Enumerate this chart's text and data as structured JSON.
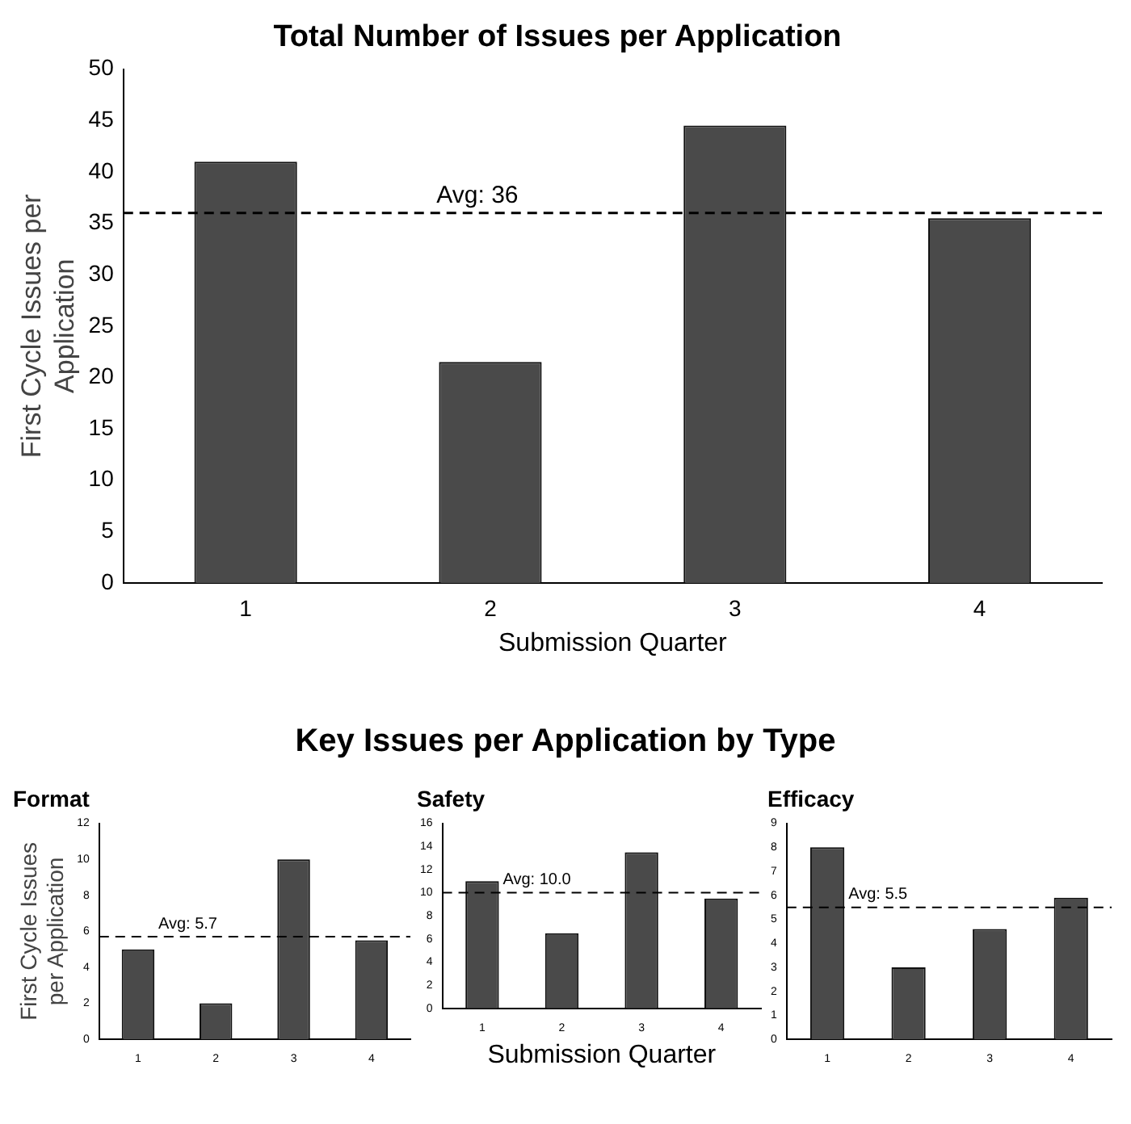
{
  "chart_data": [
    {
      "type": "bar",
      "title": "Total Number of Issues per Application",
      "xlabel": "Submission Quarter",
      "ylabel": "First Cycle Issues per Application",
      "categories": [
        "1",
        "2",
        "3",
        "4"
      ],
      "values": [
        41,
        21.5,
        44.5,
        35.5
      ],
      "color": "#4a4a4a",
      "ylim": [
        0,
        50
      ],
      "yticks": [
        0,
        5,
        10,
        15,
        20,
        25,
        30,
        35,
        40,
        45,
        50
      ],
      "grid": false,
      "ref_lines": [
        {
          "axis": "y",
          "value": 36,
          "label": "Avg: 36",
          "color": "#000000",
          "line_style": "dashed"
        }
      ]
    },
    {
      "type": "bar",
      "title": "Key Issues per Application by Type",
      "subtitle": "Format",
      "ylabel": "First Cycle Issues per Application",
      "categories": [
        "1",
        "2",
        "3",
        "4"
      ],
      "values": [
        5,
        2,
        10,
        5.5
      ],
      "color": "#4a4a4a",
      "ylim": [
        0,
        12
      ],
      "yticks": [
        0,
        2,
        4,
        6,
        8,
        10,
        12
      ],
      "grid": false,
      "ref_lines": [
        {
          "axis": "y",
          "value": 5.7,
          "label": "Avg: 5.7",
          "color": "#000000",
          "line_style": "dashed"
        }
      ]
    },
    {
      "type": "bar",
      "title": "Safety",
      "xlabel": "Submission Quarter",
      "categories": [
        "1",
        "2",
        "3",
        "4"
      ],
      "values": [
        11,
        6.5,
        13.5,
        9.5
      ],
      "color": "#4a4a4a",
      "ylim": [
        0,
        16
      ],
      "yticks": [
        0,
        2,
        4,
        6,
        8,
        10,
        12,
        14,
        16
      ],
      "grid": false,
      "ref_lines": [
        {
          "axis": "y",
          "value": 10,
          "label": "Avg: 10.0",
          "color": "#000000",
          "line_style": "dashed"
        }
      ]
    },
    {
      "type": "bar",
      "title": "Efficacy",
      "categories": [
        "1",
        "2",
        "3",
        "4"
      ],
      "values": [
        8,
        3,
        4.6,
        5.9
      ],
      "color": "#4a4a4a",
      "ylim": [
        0,
        9
      ],
      "yticks": [
        0,
        1,
        2,
        3,
        4,
        5,
        6,
        7,
        8,
        9
      ],
      "grid": false,
      "ref_lines": [
        {
          "axis": "y",
          "value": 5.5,
          "label": "Avg: 5.5",
          "color": "#000000",
          "line_style": "dashed"
        }
      ]
    }
  ]
}
